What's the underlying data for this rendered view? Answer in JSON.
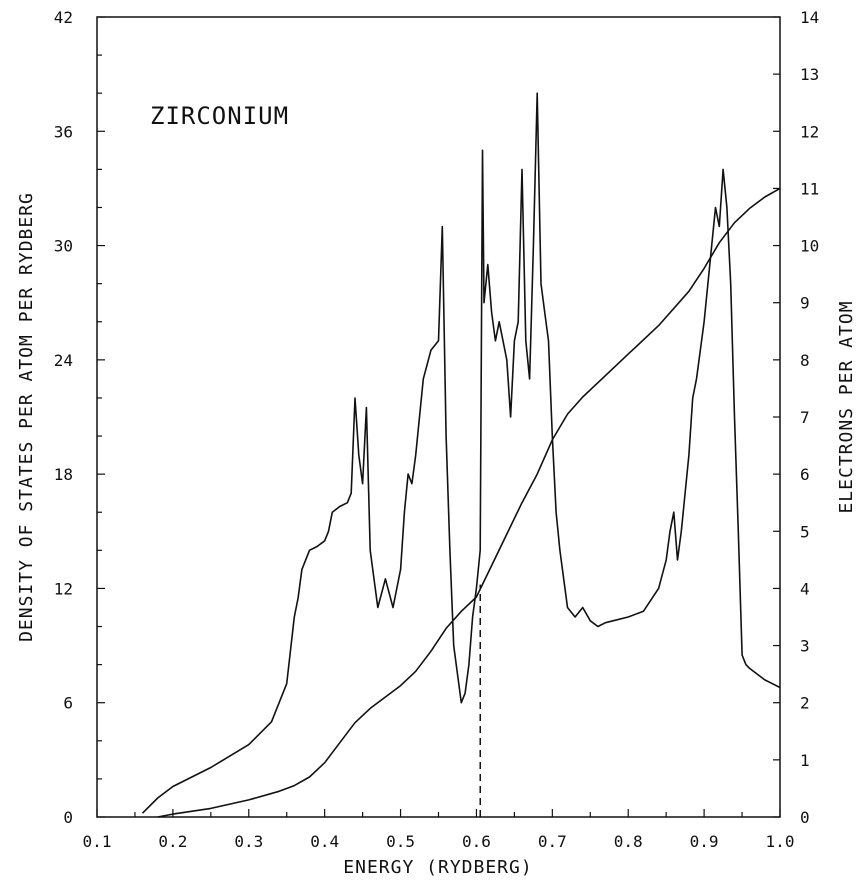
{
  "chart_data": {
    "type": "line",
    "annotation": "ZIRCONIUM",
    "xlabel": "ENERGY (RYDBERG)",
    "ylabel_left": "DENSITY OF STATES PER ATOM PER RYDBERG",
    "ylabel_right": "ELECTRONS PER ATOM",
    "xlim": [
      0.1,
      1.0
    ],
    "ylim_left": [
      0,
      42
    ],
    "ylim_right": [
      0,
      14
    ],
    "x_ticks": [
      "0.1",
      "0.2",
      "0.3",
      "0.4",
      "0.5",
      "0.6",
      "0.7",
      "0.8",
      "0.9",
      "1.0"
    ],
    "y_left_ticks": [
      "0",
      "6",
      "12",
      "18",
      "24",
      "30",
      "36",
      "42"
    ],
    "y_right_ticks": [
      "0",
      "1",
      "2",
      "3",
      "4",
      "5",
      "6",
      "7",
      "8",
      "9",
      "10",
      "11",
      "12",
      "13",
      "14"
    ],
    "fermi_level": 0.605,
    "series": [
      {
        "axis": "left",
        "x": [
          0.16,
          0.18,
          0.2,
          0.25,
          0.3,
          0.33,
          0.35,
          0.36,
          0.365,
          0.37,
          0.375,
          0.38,
          0.39,
          0.4,
          0.405,
          0.41,
          0.42,
          0.43,
          0.435,
          0.44,
          0.445,
          0.45,
          0.455,
          0.46,
          0.47,
          0.48,
          0.49,
          0.5,
          0.505,
          0.51,
          0.515,
          0.52,
          0.53,
          0.54,
          0.55,
          0.555,
          0.56,
          0.565,
          0.57,
          0.58,
          0.585,
          0.59,
          0.595,
          0.6,
          0.605,
          0.608,
          0.61,
          0.615,
          0.62,
          0.625,
          0.63,
          0.64,
          0.645,
          0.65,
          0.655,
          0.66,
          0.665,
          0.67,
          0.675,
          0.68,
          0.685,
          0.69,
          0.695,
          0.7,
          0.705,
          0.71,
          0.72,
          0.73,
          0.74,
          0.75,
          0.76,
          0.77,
          0.78,
          0.8,
          0.82,
          0.84,
          0.85,
          0.855,
          0.86,
          0.865,
          0.87,
          0.875,
          0.88,
          0.885,
          0.89,
          0.9,
          0.91,
          0.915,
          0.92,
          0.925,
          0.93,
          0.935,
          0.94,
          0.945,
          0.95,
          0.955,
          0.96,
          0.97,
          0.98,
          0.99,
          1.0
        ],
        "values": [
          0.2,
          1.0,
          1.6,
          2.6,
          3.8,
          5.0,
          7.0,
          10.5,
          11.5,
          13.0,
          13.5,
          14.0,
          14.2,
          14.5,
          15.0,
          16.0,
          16.3,
          16.5,
          17.0,
          22.0,
          19.0,
          17.5,
          21.5,
          14.0,
          11.0,
          12.5,
          11.0,
          13.0,
          16.0,
          18.0,
          17.5,
          19.0,
          23.0,
          24.5,
          25.0,
          31.0,
          20.0,
          14.0,
          9.0,
          6.0,
          6.5,
          8.0,
          10.5,
          12.0,
          14.0,
          35.0,
          27.0,
          29.0,
          26.5,
          25.0,
          26.0,
          24.0,
          21.0,
          25.0,
          26.0,
          34.0,
          25.0,
          23.0,
          30.0,
          38.0,
          28.0,
          26.5,
          25.0,
          20.0,
          16.0,
          14.0,
          11.0,
          10.5,
          11.0,
          10.3,
          10.0,
          10.2,
          10.3,
          10.5,
          10.8,
          12.0,
          13.5,
          15.0,
          16.0,
          13.5,
          15.0,
          17.0,
          19.0,
          22.0,
          23.0,
          26.0,
          30.0,
          32.0,
          31.0,
          34.0,
          32.0,
          28.0,
          21.0,
          15.0,
          8.5,
          8.0,
          7.8,
          7.5,
          7.2,
          7.0,
          6.8
        ]
      },
      {
        "axis": "right",
        "x": [
          0.18,
          0.2,
          0.25,
          0.3,
          0.34,
          0.36,
          0.38,
          0.4,
          0.42,
          0.44,
          0.46,
          0.48,
          0.5,
          0.52,
          0.54,
          0.56,
          0.58,
          0.6,
          0.62,
          0.64,
          0.66,
          0.68,
          0.7,
          0.72,
          0.74,
          0.76,
          0.8,
          0.84,
          0.88,
          0.9,
          0.92,
          0.94,
          0.96,
          0.98,
          1.0
        ],
        "values": [
          0.0,
          0.05,
          0.15,
          0.3,
          0.45,
          0.55,
          0.7,
          0.95,
          1.3,
          1.65,
          1.9,
          2.1,
          2.3,
          2.55,
          2.9,
          3.3,
          3.6,
          3.85,
          4.4,
          4.95,
          5.5,
          6.0,
          6.6,
          7.05,
          7.35,
          7.6,
          8.1,
          8.6,
          9.2,
          9.6,
          10.05,
          10.4,
          10.65,
          10.85,
          11.0
        ]
      }
    ]
  }
}
